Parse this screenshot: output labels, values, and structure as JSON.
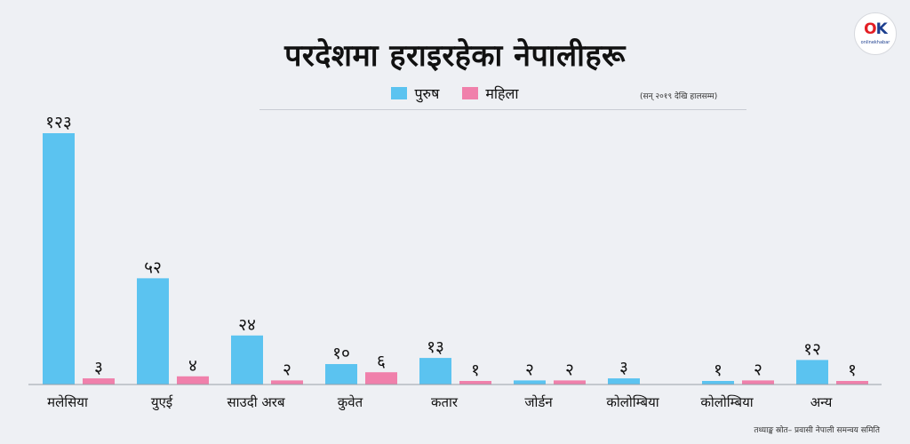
{
  "title": "परदेशमा हराइरहेका नेपालीहरू",
  "period_note": "(सन् २०१९ देखि हालसम्म)",
  "source": "तथ्याङ्क स्रोत– प्रवासी नेपाली समन्वय समिति",
  "logo": {
    "brand": "OK",
    "sub": "onlinekhabar"
  },
  "colors": {
    "male": "#5bc3f0",
    "female": "#f080ab",
    "axis": "#9aa0a8"
  },
  "chart_data": {
    "type": "bar",
    "categories": [
      "मलेसिया",
      "युएई",
      "साउदी अरब",
      "कुवेत",
      "कतार",
      "जोर्डन",
      "कोलोम्बिया",
      "कोलोम्बिया",
      "अन्य"
    ],
    "series": [
      {
        "name": "पुरुष",
        "values": [
          123,
          52,
          24,
          10,
          13,
          2,
          3,
          1,
          12
        ],
        "labels": [
          "१२३",
          "५२",
          "२४",
          "१०",
          "१३",
          "२",
          "३",
          "१",
          "१२"
        ]
      },
      {
        "name": "महिला",
        "values": [
          3,
          4,
          2,
          6,
          1,
          2,
          0,
          2,
          1
        ],
        "labels": [
          "३",
          "४",
          "२",
          "६",
          "१",
          "२",
          "",
          "२",
          "१"
        ]
      }
    ],
    "ylim": [
      0,
      123
    ],
    "grid": false,
    "legend": "top-center"
  }
}
